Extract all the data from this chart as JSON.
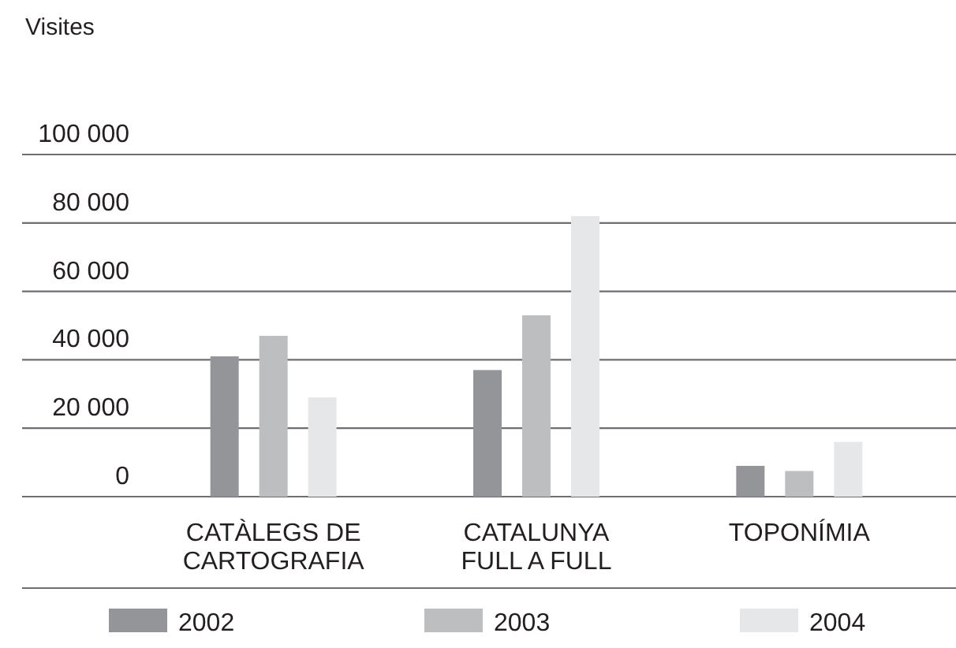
{
  "chart_data": {
    "type": "bar",
    "ylabel": "Visites",
    "categories": [
      "CATÀLEGS DE\nCARTOGRAFIA",
      "CATALUNYA\nFULL A FULL",
      "TOPONÍMIA"
    ],
    "series": [
      {
        "name": "2002",
        "color": "#939598",
        "values": [
          41000,
          37000,
          9000
        ]
      },
      {
        "name": "2003",
        "color": "#bcbec0",
        "values": [
          47000,
          53000,
          7500
        ]
      },
      {
        "name": "2004",
        "color": "#e6e7e8",
        "values": [
          29000,
          82000,
          16000
        ]
      }
    ],
    "ylim": [
      0,
      100000
    ],
    "yticks": [
      {
        "value": 0,
        "label": "0"
      },
      {
        "value": 20000,
        "label": "20 000"
      },
      {
        "value": 40000,
        "label": "40 000"
      },
      {
        "value": 60000,
        "label": "60 000"
      },
      {
        "value": 80000,
        "label": "80 000"
      },
      {
        "value": 100000,
        "label": "100 000"
      }
    ],
    "grid": "y",
    "legend": "bottom"
  }
}
